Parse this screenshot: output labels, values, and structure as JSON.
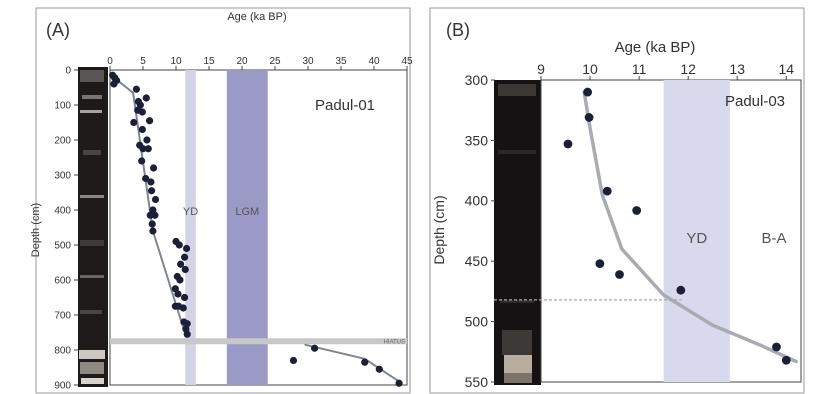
{
  "chart_data": [
    {
      "type": "scatter",
      "panel_label": "(A)",
      "site_label": "Padul-01",
      "xlabel": "Age (ka BP)",
      "ylabel": "Depth (cm)",
      "xlim": [
        0,
        45
      ],
      "ylim": [
        900,
        0
      ],
      "x_ticks": [
        "0",
        "5",
        "10",
        "15",
        "20",
        "25",
        "30",
        "35",
        "40",
        "45"
      ],
      "y_ticks": [
        "0",
        "100",
        "200",
        "300",
        "400",
        "500",
        "600",
        "700",
        "800",
        "900"
      ],
      "bands": [
        {
          "label": "YD",
          "x0": 11.4,
          "x1": 13.0,
          "color": "#d3d3e8"
        },
        {
          "label": "LGM",
          "x0": 17.7,
          "x1": 23.9,
          "color": "#9b9ac6"
        }
      ],
      "hiatus": {
        "label": "HIATUS",
        "depth": 775
      },
      "series": [
        {
          "points": [
            [
              0.4,
              15
            ],
            [
              0.7,
              22
            ],
            [
              1.0,
              30
            ],
            [
              0.6,
              40
            ],
            [
              4.0,
              55
            ],
            [
              4.3,
              90
            ],
            [
              4.6,
              100
            ],
            [
              5.5,
              80
            ],
            [
              4.2,
              115
            ],
            [
              4.9,
              120
            ],
            [
              3.6,
              150
            ],
            [
              6.0,
              145
            ],
            [
              4.9,
              170
            ],
            [
              5.6,
              200
            ],
            [
              4.5,
              215
            ],
            [
              5.0,
              225
            ],
            [
              5.8,
              225
            ],
            [
              4.8,
              260
            ],
            [
              6.6,
              280
            ],
            [
              5.4,
              310
            ],
            [
              6.2,
              320
            ],
            [
              6.3,
              345
            ],
            [
              6.9,
              370
            ],
            [
              6.5,
              400
            ],
            [
              6.1,
              415
            ],
            [
              6.8,
              415
            ],
            [
              6.4,
              440
            ],
            [
              6.5,
              460
            ],
            [
              10.0,
              490
            ],
            [
              10.5,
              500
            ],
            [
              11.6,
              510
            ],
            [
              11.3,
              535
            ],
            [
              10.7,
              555
            ],
            [
              11.4,
              570
            ],
            [
              10.2,
              590
            ],
            [
              10.6,
              600
            ],
            [
              9.9,
              625
            ],
            [
              10.3,
              640
            ],
            [
              11.3,
              650
            ],
            [
              9.9,
              675
            ],
            [
              10.4,
              675
            ],
            [
              11.1,
              680
            ],
            [
              11.2,
              720
            ],
            [
              11.7,
              725
            ],
            [
              11.5,
              740
            ],
            [
              11.7,
              755
            ],
            [
              27.8,
              830
            ],
            [
              31.0,
              795
            ],
            [
              38.6,
              835
            ],
            [
              40.8,
              855
            ],
            [
              43.8,
              895
            ]
          ]
        }
      ],
      "trend_lines": [
        [
          [
            0.3,
            15
          ],
          [
            1.5,
            35
          ],
          [
            3.5,
            65
          ],
          [
            6.5,
            460
          ],
          [
            11.5,
            760
          ]
        ],
        [
          [
            29.6,
            785
          ],
          [
            38.6,
            825
          ],
          [
            43.8,
            890
          ]
        ]
      ]
    },
    {
      "type": "scatter",
      "panel_label": "(B)",
      "site_label": "Padul-03",
      "xlabel": "Age (ka BP)",
      "ylabel": "Depth (cm)",
      "xlim": [
        9,
        14.3
      ],
      "ylim": [
        550,
        300
      ],
      "x_ticks": [
        "9",
        "10",
        "11",
        "12",
        "13",
        "14"
      ],
      "y_ticks": [
        "300",
        "350",
        "400",
        "450",
        "500",
        "550"
      ],
      "bands": [
        {
          "label": "YD",
          "x0": 11.5,
          "x1": 12.85,
          "color": "#d9d9ee"
        }
      ],
      "band_labels_extra": [
        {
          "label": "B-A",
          "x": 13.75,
          "depth": 431
        }
      ],
      "hiatus": {
        "depth": 482
      },
      "series": [
        {
          "points": [
            [
              9.95,
              310
            ],
            [
              9.98,
              331
            ],
            [
              9.55,
              353
            ],
            [
              10.35,
              392
            ],
            [
              10.95,
              408
            ],
            [
              10.2,
              452
            ],
            [
              10.6,
              461
            ],
            [
              11.85,
              474
            ],
            [
              13.8,
              521
            ],
            [
              14.0,
              532
            ]
          ]
        }
      ],
      "trend_lines": [
        [
          [
            9.88,
            310
          ],
          [
            10.0,
            340
          ],
          [
            10.25,
            395
          ],
          [
            10.65,
            440
          ],
          [
            11.5,
            478
          ],
          [
            12.5,
            503
          ],
          [
            13.5,
            520
          ],
          [
            14.2,
            533
          ]
        ]
      ]
    }
  ]
}
